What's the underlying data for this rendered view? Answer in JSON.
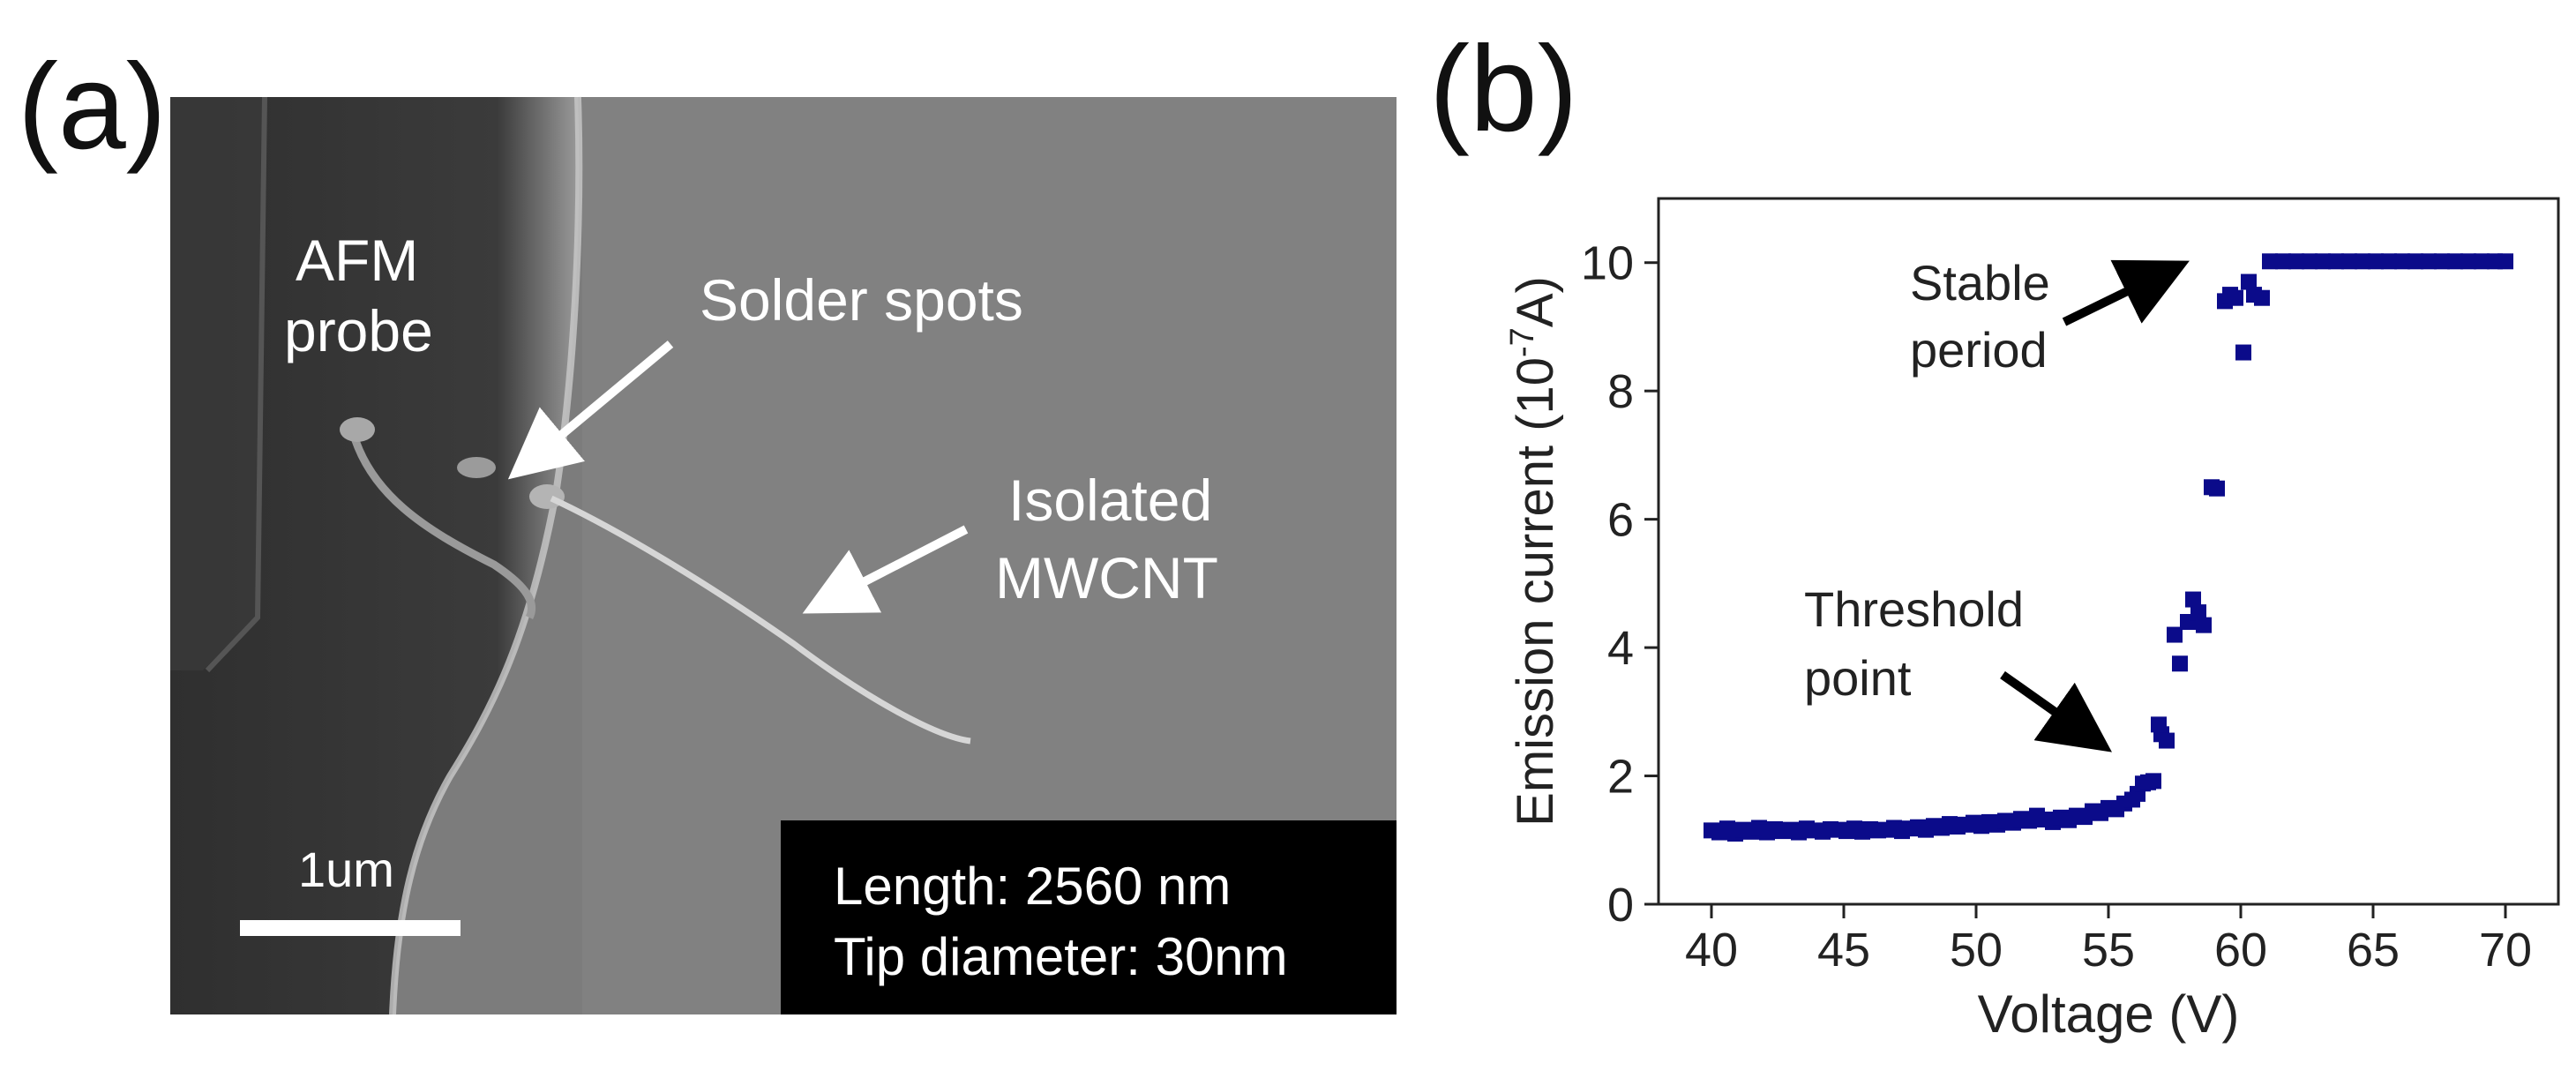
{
  "panel_a": {
    "label": "(a)",
    "annotations": {
      "afm_line1": "AFM",
      "afm_line2": "probe",
      "solder": "Solder spots",
      "isolated_line1": "Isolated",
      "isolated_line2": "MWCNT"
    },
    "scale_bar_label": "1um",
    "info_box": {
      "line1": "Length: 2560 nm",
      "line2": "Tip diameter: 30nm"
    }
  },
  "panel_b": {
    "label": "(b)",
    "annotations": {
      "stable_line1": "Stable",
      "stable_line2": "period",
      "threshold_line1": "Threshold",
      "threshold_line2": "point"
    }
  },
  "colors": {
    "marker": "#0b0b8a",
    "sem_background": "#7b7b7b",
    "sem_probe": "#2c2c2c",
    "info_box": "#000000"
  },
  "chart_data": {
    "type": "scatter",
    "title": "",
    "xlabel": "Voltage (V)",
    "ylabel_main": "Emission current (10",
    "ylabel_exp": "-7",
    "ylabel_tail": "A)",
    "xlim": [
      38,
      72
    ],
    "ylim": [
      0,
      11
    ],
    "xticks": [
      40,
      45,
      50,
      55,
      60,
      65,
      70
    ],
    "yticks": [
      0,
      2,
      4,
      6,
      8,
      10
    ],
    "xtick_labels": [
      "40",
      "45",
      "50",
      "55",
      "60",
      "65",
      "70"
    ],
    "ytick_labels": [
      "0",
      "2",
      "4",
      "6",
      "8",
      "10"
    ],
    "series": [
      {
        "name": "Emission current",
        "x": [
          40.0,
          40.3,
          40.6,
          40.9,
          41.2,
          41.5,
          41.8,
          42.1,
          42.4,
          42.7,
          43.0,
          43.3,
          43.6,
          43.9,
          44.2,
          44.5,
          44.8,
          45.1,
          45.4,
          45.7,
          46.0,
          46.3,
          46.6,
          46.9,
          47.2,
          47.5,
          47.8,
          48.1,
          48.4,
          48.7,
          49.0,
          49.3,
          49.6,
          49.9,
          50.2,
          50.5,
          50.8,
          51.1,
          51.4,
          51.7,
          52.0,
          52.3,
          52.6,
          52.9,
          53.2,
          53.5,
          53.8,
          54.1,
          54.4,
          54.7,
          55.0,
          55.3,
          55.6,
          55.9,
          56.1,
          56.3,
          56.5,
          56.7,
          56.9,
          57.0,
          57.2,
          57.5,
          57.7,
          58.0,
          58.2,
          58.4,
          58.6,
          58.9,
          59.1,
          59.4,
          59.6,
          59.8,
          60.1,
          60.3,
          60.5,
          60.8,
          61.1,
          61.6,
          62.1,
          62.6,
          63.1,
          63.6,
          64.1,
          64.6,
          65.1,
          65.6,
          66.1,
          66.6,
          67.1,
          67.6,
          68.1,
          68.6,
          69.1,
          69.6,
          70.0
        ],
        "y": [
          1.15,
          1.12,
          1.18,
          1.1,
          1.16,
          1.13,
          1.19,
          1.12,
          1.17,
          1.14,
          1.16,
          1.12,
          1.18,
          1.15,
          1.13,
          1.17,
          1.16,
          1.14,
          1.18,
          1.13,
          1.17,
          1.15,
          1.16,
          1.19,
          1.14,
          1.18,
          1.2,
          1.16,
          1.22,
          1.19,
          1.25,
          1.21,
          1.24,
          1.27,
          1.22,
          1.28,
          1.24,
          1.3,
          1.27,
          1.33,
          1.3,
          1.38,
          1.32,
          1.28,
          1.35,
          1.31,
          1.38,
          1.36,
          1.45,
          1.42,
          1.5,
          1.48,
          1.57,
          1.63,
          1.72,
          1.88,
          1.9,
          1.92,
          2.8,
          2.65,
          2.55,
          4.2,
          3.75,
          4.4,
          4.75,
          4.55,
          4.35,
          6.5,
          6.48,
          9.4,
          9.5,
          9.45,
          8.6,
          9.7,
          9.5,
          9.45,
          10.02,
          10.02,
          10.02,
          10.02,
          10.02,
          10.02,
          10.02,
          10.02,
          10.02,
          10.02,
          10.02,
          10.02,
          10.02,
          10.02,
          10.02,
          10.02,
          10.02,
          10.02,
          10.02
        ]
      }
    ]
  }
}
